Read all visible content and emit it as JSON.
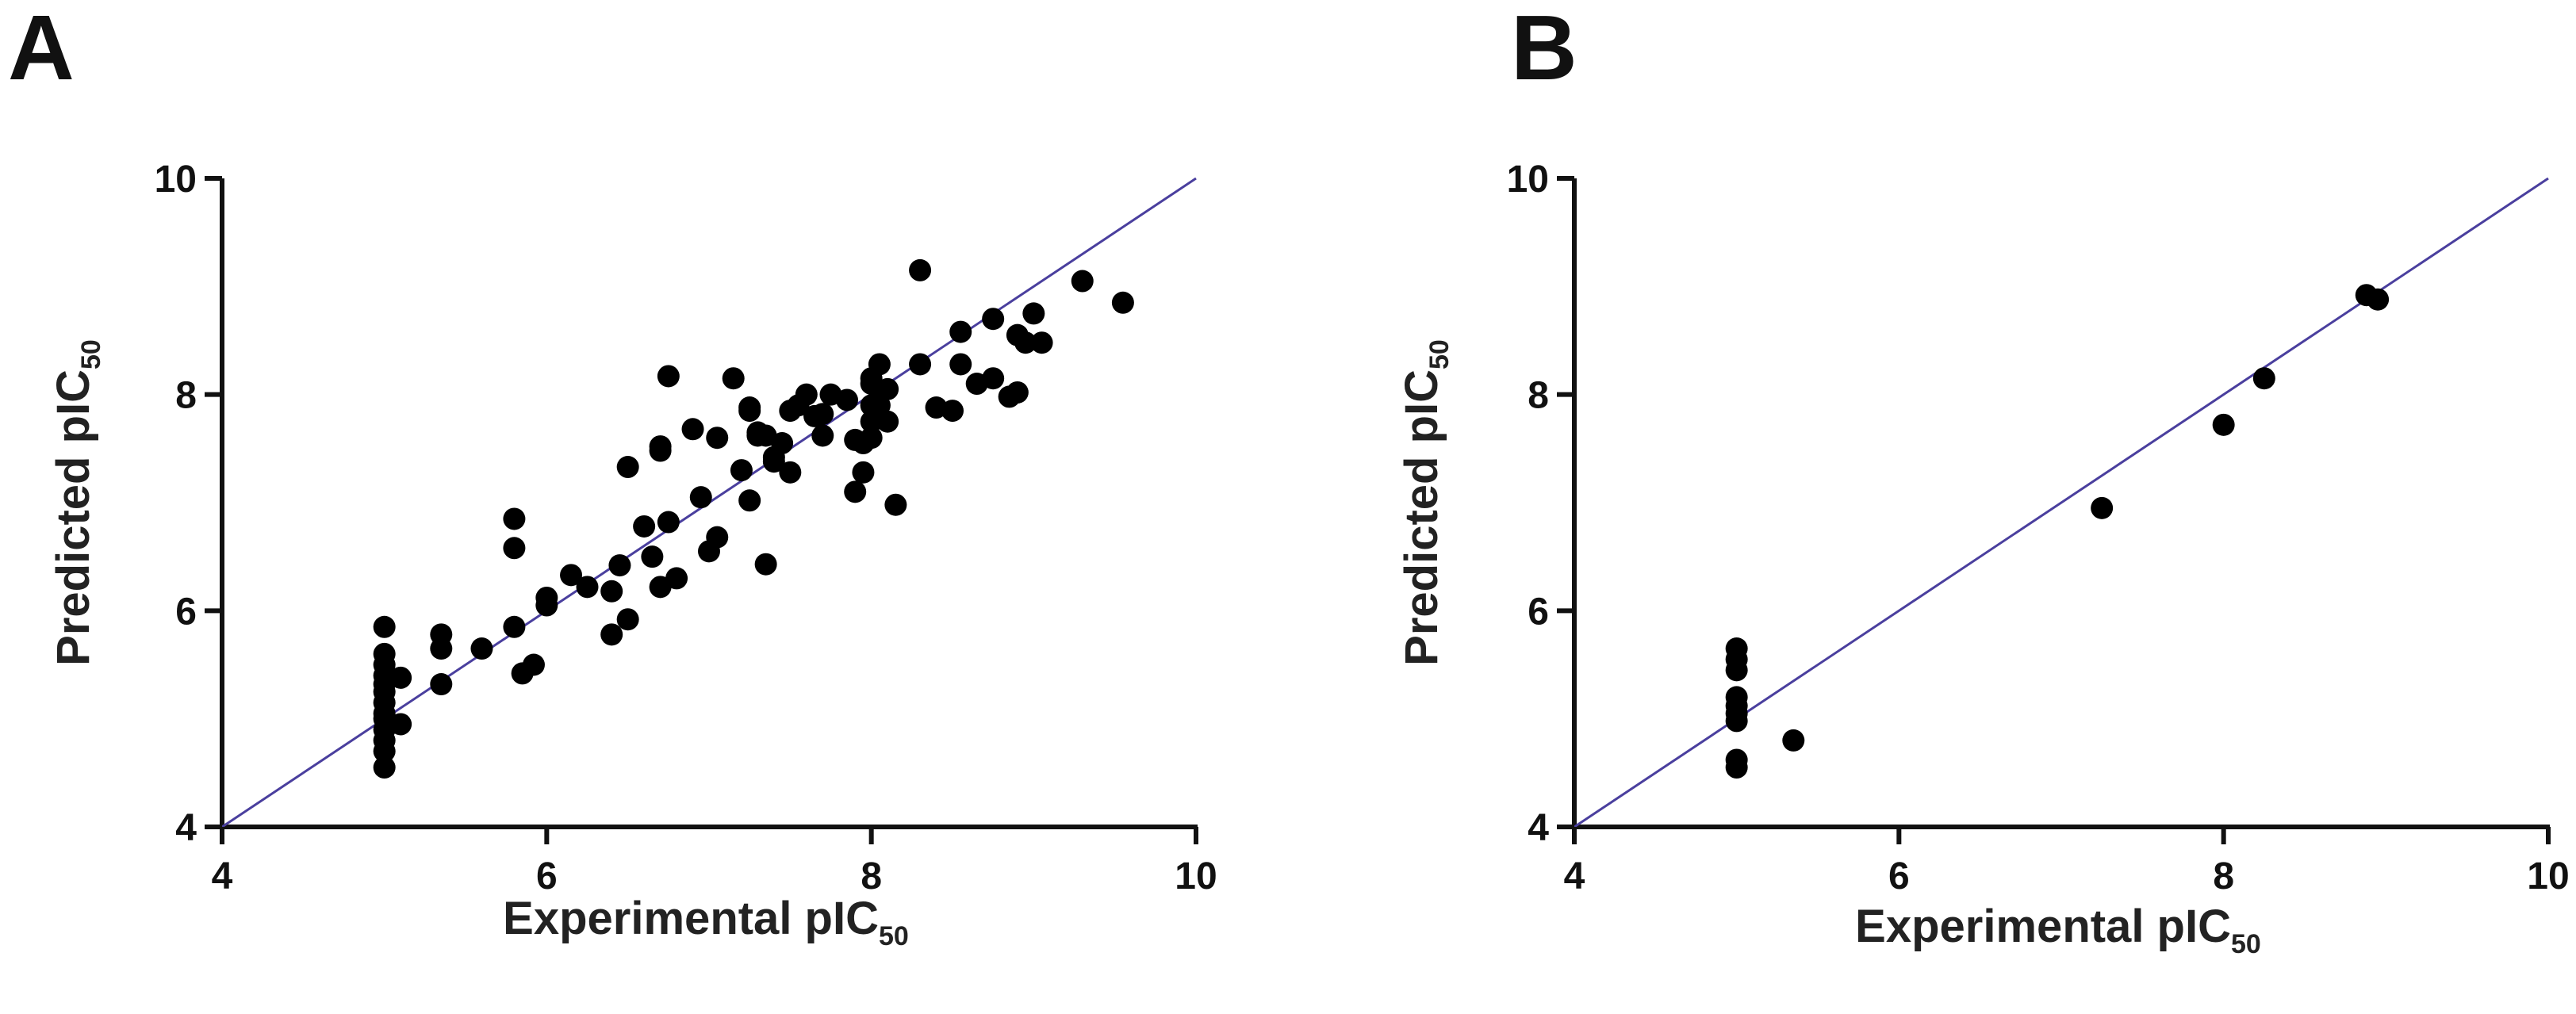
{
  "chart_data": [
    {
      "type": "scatter",
      "panel_label": "A",
      "xlabel": "Experimental pIC",
      "xlabel_sub": "50",
      "ylabel": "Predicted pIC",
      "ylabel_sub": "50",
      "xlim": [
        4,
        10
      ],
      "ylim": [
        4,
        10
      ],
      "xticks": [
        4,
        6,
        8,
        10
      ],
      "yticks": [
        4,
        6,
        8,
        10
      ],
      "identity_line": true,
      "line_color": "#4a3f9e",
      "marker_color": "#000000",
      "points": [
        [
          5.0,
          4.55
        ],
        [
          5.0,
          4.7
        ],
        [
          5.0,
          4.8
        ],
        [
          5.0,
          4.9
        ],
        [
          5.0,
          5.0
        ],
        [
          5.0,
          5.05
        ],
        [
          5.0,
          5.15
        ],
        [
          5.0,
          5.25
        ],
        [
          5.0,
          5.32
        ],
        [
          5.0,
          5.4
        ],
        [
          5.0,
          5.5
        ],
        [
          5.0,
          5.6
        ],
        [
          5.0,
          5.85
        ],
        [
          5.1,
          4.95
        ],
        [
          5.1,
          5.38
        ],
        [
          5.35,
          5.32
        ],
        [
          5.35,
          5.65
        ],
        [
          5.35,
          5.78
        ],
        [
          5.6,
          5.65
        ],
        [
          5.8,
          5.85
        ],
        [
          5.8,
          6.58
        ],
        [
          5.8,
          6.85
        ],
        [
          5.85,
          5.42
        ],
        [
          5.92,
          5.5
        ],
        [
          6.0,
          6.05
        ],
        [
          6.0,
          6.12
        ],
        [
          6.15,
          6.33
        ],
        [
          6.25,
          6.22
        ],
        [
          6.4,
          5.78
        ],
        [
          6.4,
          6.18
        ],
        [
          6.45,
          6.42
        ],
        [
          6.5,
          5.92
        ],
        [
          6.5,
          7.33
        ],
        [
          6.6,
          6.78
        ],
        [
          6.65,
          6.5
        ],
        [
          6.7,
          6.22
        ],
        [
          6.7,
          7.48
        ],
        [
          6.7,
          7.52
        ],
        [
          6.75,
          8.17
        ],
        [
          6.75,
          6.82
        ],
        [
          6.8,
          6.3
        ],
        [
          6.9,
          7.68
        ],
        [
          6.95,
          7.05
        ],
        [
          7.0,
          6.55
        ],
        [
          7.05,
          6.68
        ],
        [
          7.05,
          7.6
        ],
        [
          7.15,
          8.15
        ],
        [
          7.2,
          7.3
        ],
        [
          7.25,
          7.85
        ],
        [
          7.25,
          7.88
        ],
        [
          7.25,
          7.02
        ],
        [
          7.3,
          7.62
        ],
        [
          7.3,
          7.65
        ],
        [
          7.35,
          6.43
        ],
        [
          7.35,
          7.62
        ],
        [
          7.4,
          7.42
        ],
        [
          7.4,
          7.38
        ],
        [
          7.45,
          7.55
        ],
        [
          7.5,
          7.28
        ],
        [
          7.5,
          7.85
        ],
        [
          7.55,
          7.9
        ],
        [
          7.6,
          8.0
        ],
        [
          7.65,
          7.8
        ],
        [
          7.7,
          7.62
        ],
        [
          7.7,
          7.82
        ],
        [
          7.75,
          8.0
        ],
        [
          7.85,
          7.95
        ],
        [
          7.9,
          7.1
        ],
        [
          7.9,
          7.58
        ],
        [
          7.95,
          7.28
        ],
        [
          7.95,
          7.55
        ],
        [
          8.0,
          7.6
        ],
        [
          8.0,
          7.75
        ],
        [
          8.0,
          7.9
        ],
        [
          8.0,
          8.1
        ],
        [
          8.0,
          8.15
        ],
        [
          8.05,
          7.9
        ],
        [
          8.05,
          8.02
        ],
        [
          8.05,
          8.28
        ],
        [
          8.1,
          7.75
        ],
        [
          8.1,
          8.05
        ],
        [
          8.15,
          6.98
        ],
        [
          8.3,
          8.28
        ],
        [
          8.3,
          9.15
        ],
        [
          8.4,
          7.88
        ],
        [
          8.5,
          7.85
        ],
        [
          8.55,
          8.28
        ],
        [
          8.55,
          8.58
        ],
        [
          8.65,
          8.1
        ],
        [
          8.75,
          8.7
        ],
        [
          8.75,
          8.15
        ],
        [
          8.85,
          7.98
        ],
        [
          8.9,
          8.55
        ],
        [
          8.9,
          8.02
        ],
        [
          8.95,
          8.48
        ],
        [
          9.0,
          8.75
        ],
        [
          9.05,
          8.48
        ],
        [
          9.3,
          9.05
        ],
        [
          9.55,
          8.85
        ]
      ]
    },
    {
      "type": "scatter",
      "panel_label": "B",
      "xlabel": "Experimental pIC",
      "xlabel_sub": "50",
      "ylabel": "Predicted pIC",
      "ylabel_sub": "50",
      "xlim": [
        4,
        10
      ],
      "ylim": [
        4,
        10
      ],
      "xticks": [
        4,
        6,
        8,
        10
      ],
      "yticks": [
        4,
        6,
        8,
        10
      ],
      "identity_line": true,
      "line_color": "#4a3f9e",
      "marker_color": "#000000",
      "points": [
        [
          5.0,
          4.55
        ],
        [
          5.0,
          4.62
        ],
        [
          5.0,
          4.98
        ],
        [
          5.0,
          5.05
        ],
        [
          5.0,
          5.12
        ],
        [
          5.0,
          5.2
        ],
        [
          5.0,
          5.45
        ],
        [
          5.0,
          5.55
        ],
        [
          5.0,
          5.65
        ],
        [
          5.35,
          4.8
        ],
        [
          7.25,
          6.95
        ],
        [
          8.0,
          7.72
        ],
        [
          8.25,
          8.15
        ],
        [
          8.88,
          8.92
        ],
        [
          8.95,
          8.88
        ]
      ]
    }
  ]
}
